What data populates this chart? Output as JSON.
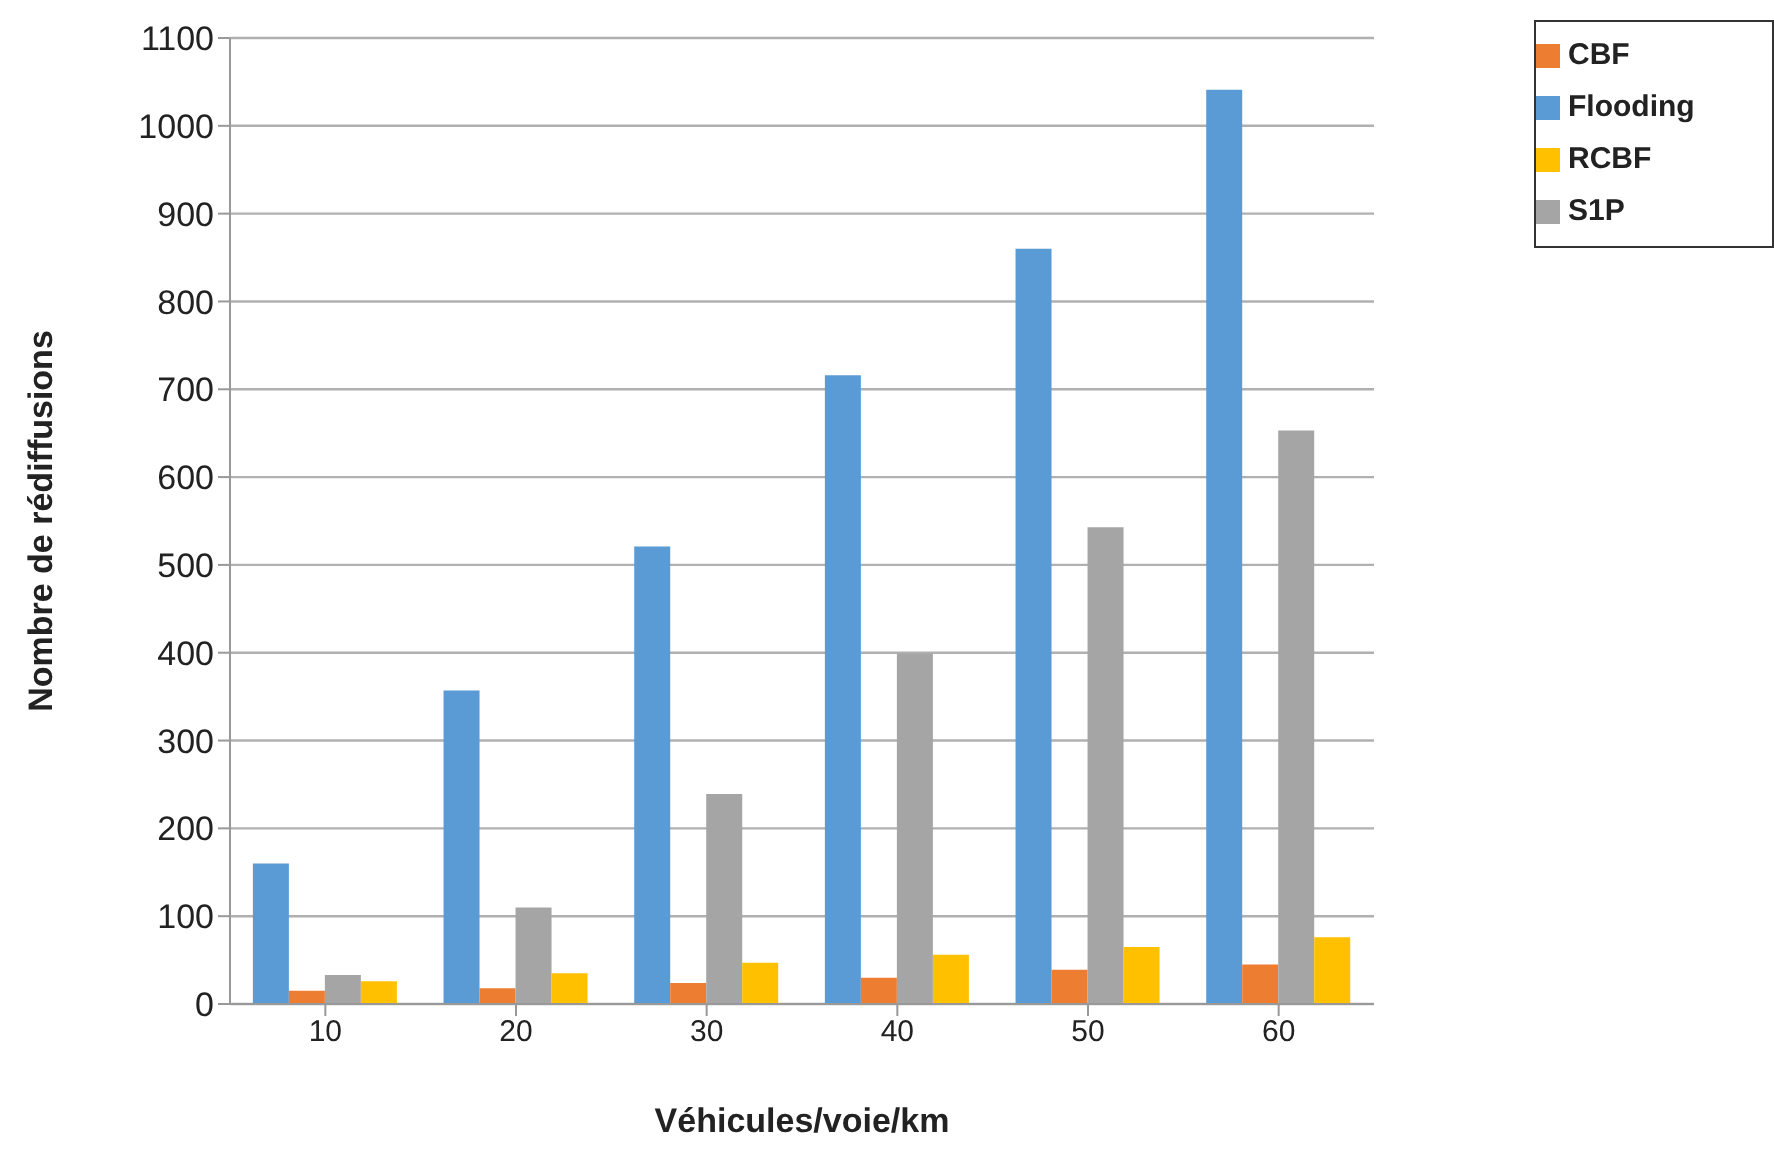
{
  "chart_data": {
    "type": "bar",
    "xlabel": "Véhicules/voie/km",
    "ylabel": "Nombre de rédiffusions",
    "categories": [
      "10",
      "20",
      "30",
      "40",
      "50",
      "60"
    ],
    "series": [
      {
        "name": "Flooding",
        "color": "#5b9bd5",
        "values": [
          160,
          357,
          521,
          716,
          860,
          1041
        ]
      },
      {
        "name": "CBF",
        "color": "#ed7d31",
        "values": [
          15,
          18,
          24,
          30,
          39,
          45
        ]
      },
      {
        "name": "S1P",
        "color": "#a5a5a5",
        "values": [
          33,
          110,
          239,
          399,
          543,
          653
        ]
      },
      {
        "name": "RCBF",
        "color": "#ffc000",
        "values": [
          26,
          35,
          47,
          56,
          65,
          76
        ]
      }
    ],
    "ylim": [
      0,
      1100
    ],
    "yticks": [
      0,
      100,
      200,
      300,
      400,
      500,
      600,
      700,
      800,
      900,
      1000,
      1100
    ],
    "grid": "y",
    "legend": "top right"
  }
}
